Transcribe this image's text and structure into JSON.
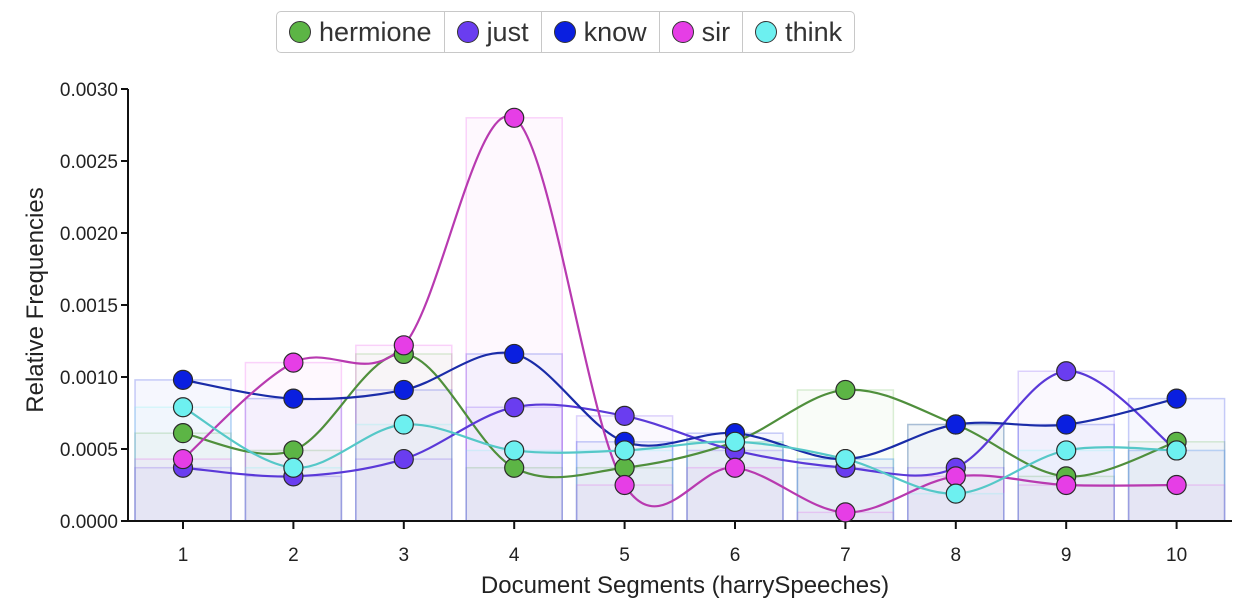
{
  "legend": [
    {
      "label": "hermione",
      "color": "#5cb545"
    },
    {
      "label": "just",
      "color": "#6a3df0"
    },
    {
      "label": "know",
      "color": "#0a1fe0"
    },
    {
      "label": "sir",
      "color": "#e63ee6"
    },
    {
      "label": "think",
      "color": "#6df0f0"
    }
  ],
  "chart_data": {
    "type": "line",
    "xlabel": "Document Segments (harrySpeeches)",
    "ylabel": "Relative Frequencies",
    "x": [
      1,
      2,
      3,
      4,
      5,
      6,
      7,
      8,
      9,
      10
    ],
    "x_tick_labels": [
      "1",
      "2",
      "3",
      "4",
      "5",
      "6",
      "7",
      "8",
      "9",
      "10"
    ],
    "ylim": [
      0,
      0.003
    ],
    "y_ticks": [
      0.0,
      0.0005,
      0.001,
      0.0015,
      0.002,
      0.0025,
      0.003
    ],
    "y_tick_labels": [
      "0.0000",
      "0.0005",
      "0.0010",
      "0.0015",
      "0.0020",
      "0.0025",
      "0.0030"
    ],
    "grid": false,
    "legend_position": "top-center",
    "series": [
      {
        "name": "hermione",
        "color": "#5cb545",
        "stroke": "#4f8f3c",
        "values": [
          0.00061,
          0.00049,
          0.00116,
          0.00037,
          0.00037,
          0.00055,
          0.00091,
          0.00067,
          0.00031,
          0.00055
        ]
      },
      {
        "name": "just",
        "color": "#6a3df0",
        "stroke": "#5a39d8",
        "values": [
          0.00037,
          0.00031,
          0.00043,
          0.00079,
          0.00073,
          0.00049,
          0.00037,
          0.00037,
          0.00104,
          0.00049
        ]
      },
      {
        "name": "know",
        "color": "#0a1fe0",
        "stroke": "#1a2ca8",
        "values": [
          0.00098,
          0.00085,
          0.00091,
          0.00116,
          0.00055,
          0.00061,
          0.00043,
          0.00067,
          0.00067,
          0.00085
        ]
      },
      {
        "name": "sir",
        "color": "#e63ee6",
        "stroke": "#b83ab0",
        "values": [
          0.00043,
          0.0011,
          0.00122,
          0.0028,
          0.00025,
          0.00037,
          6e-05,
          0.00031,
          0.00025,
          0.00025
        ]
      },
      {
        "name": "think",
        "color": "#6df0f0",
        "stroke": "#55c8c8",
        "values": [
          0.00079,
          0.00037,
          0.00067,
          0.00049,
          0.00049,
          0.00055,
          0.00043,
          0.00019,
          0.00049,
          0.00049
        ]
      }
    ]
  }
}
